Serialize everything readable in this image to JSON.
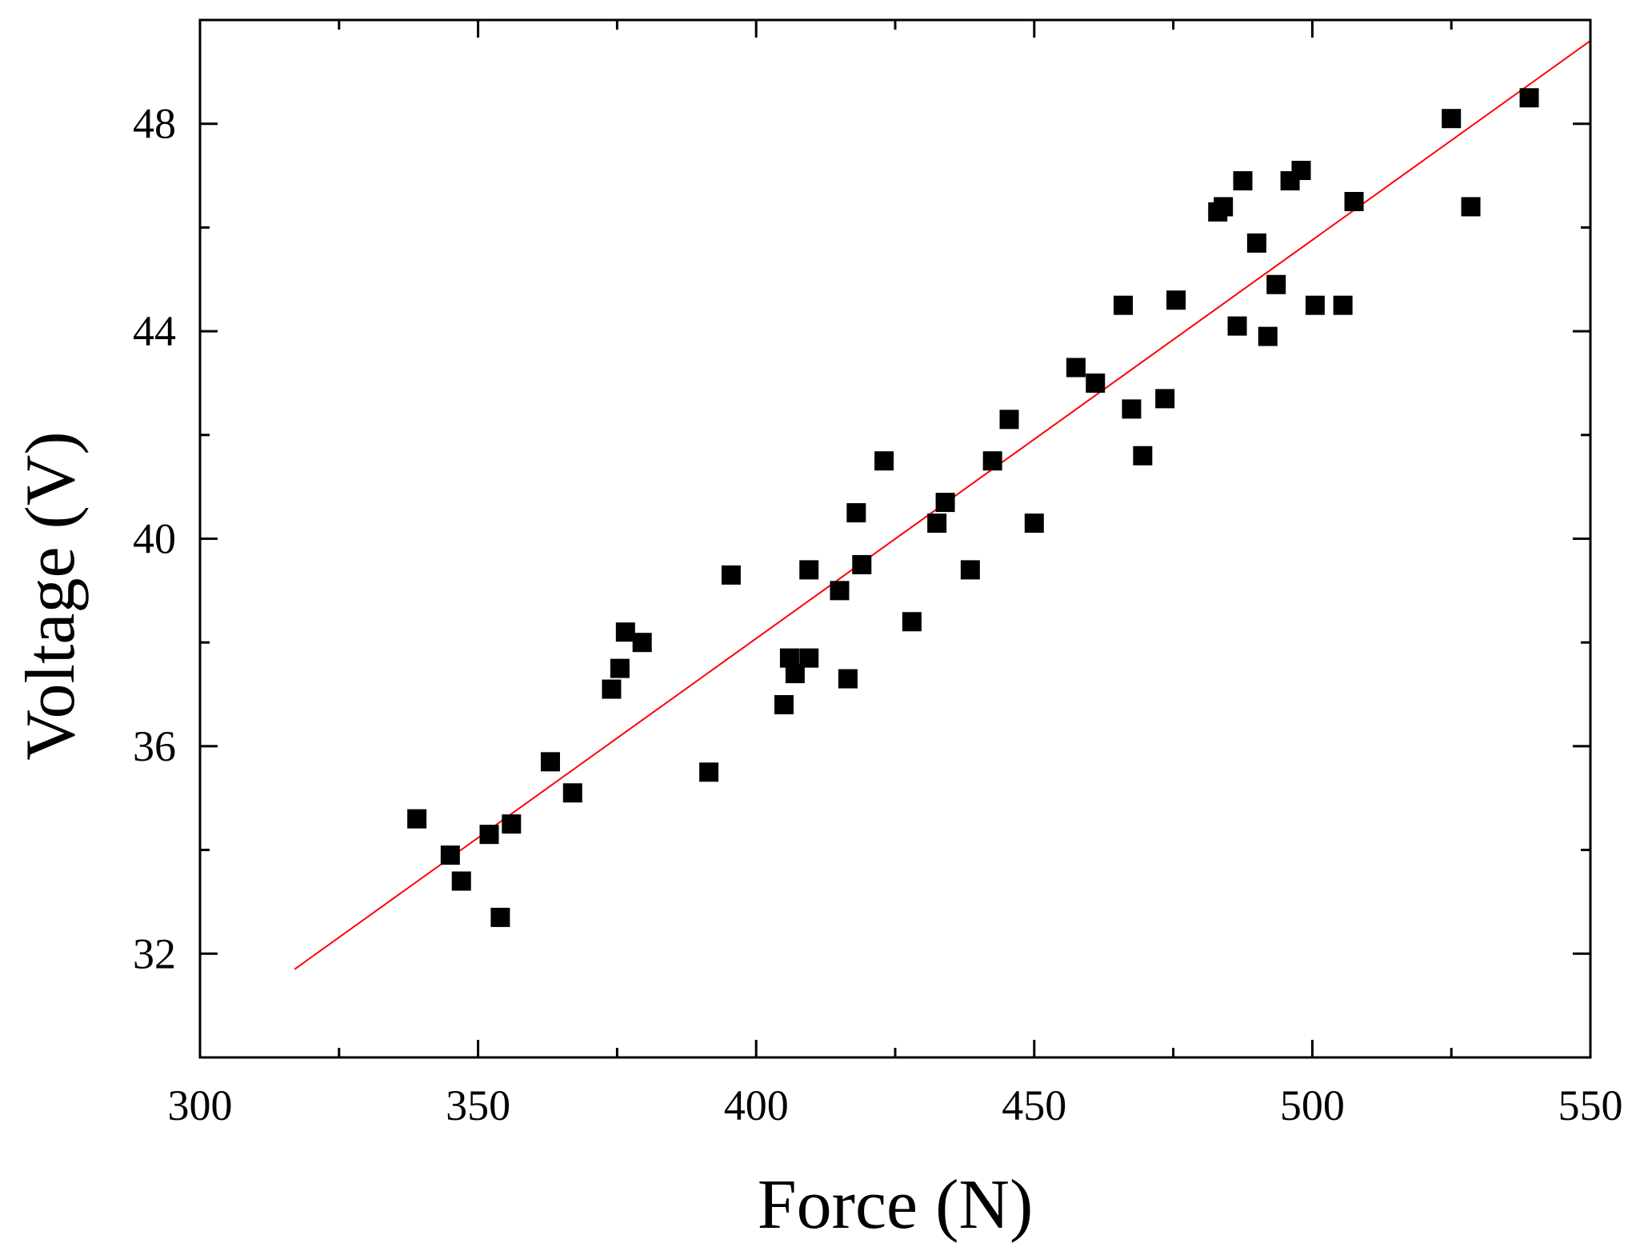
{
  "chart_data": {
    "type": "scatter",
    "title": "",
    "xlabel": "Force (N)",
    "ylabel": "Voltage (V)",
    "xlim": [
      300,
      550
    ],
    "ylim": [
      30,
      50
    ],
    "x_ticks": [
      300,
      350,
      400,
      450,
      500,
      550
    ],
    "x_tick_labels": [
      "300",
      "350",
      "400",
      "450",
      "500",
      "550"
    ],
    "x_minor_ticks": [
      325,
      375,
      425,
      475,
      525
    ],
    "y_ticks": [
      32,
      36,
      40,
      44,
      48
    ],
    "y_tick_labels": [
      "32",
      "36",
      "40",
      "44",
      "48"
    ],
    "y_minor_ticks": [
      34,
      38,
      42,
      46
    ],
    "grid": false,
    "legend": "none",
    "colors": {
      "points": "#000000",
      "fit_line": "#ff0000",
      "axes": "#000000"
    },
    "series": [
      {
        "marker": "square",
        "x": [
          339,
          345,
          347,
          352,
          354,
          356,
          363,
          367,
          374,
          375.5,
          376.5,
          379.5,
          391.5,
          395.5,
          405,
          406,
          407,
          409.5,
          409.5,
          415,
          416.5,
          418,
          419,
          423,
          428,
          432.5,
          434,
          438.5,
          442.5,
          445.5,
          450,
          457.5,
          461,
          466,
          467.5,
          469.5,
          473.5,
          475.5,
          483,
          484,
          486.5,
          487.5,
          490,
          492,
          493.5,
          496,
          498,
          500.5,
          505.5,
          507.5,
          525,
          528.5,
          539
        ],
        "y": [
          34.6,
          33.9,
          33.4,
          34.3,
          32.7,
          34.5,
          35.7,
          35.1,
          37.1,
          37.5,
          38.2,
          38.0,
          35.5,
          39.3,
          36.8,
          37.7,
          37.4,
          39.4,
          37.7,
          39.0,
          37.3,
          40.5,
          39.5,
          41.5,
          38.4,
          40.3,
          40.7,
          39.4,
          41.5,
          42.3,
          40.3,
          43.3,
          43.0,
          44.5,
          42.5,
          41.6,
          42.7,
          44.6,
          46.3,
          46.4,
          44.1,
          46.9,
          45.7,
          43.9,
          44.9,
          46.9,
          47.1,
          44.5,
          44.5,
          46.5,
          48.1,
          46.4,
          48.5
        ]
      }
    ],
    "fit_line": {
      "x": [
        317,
        550
      ],
      "y": [
        31.7,
        49.6
      ]
    }
  }
}
